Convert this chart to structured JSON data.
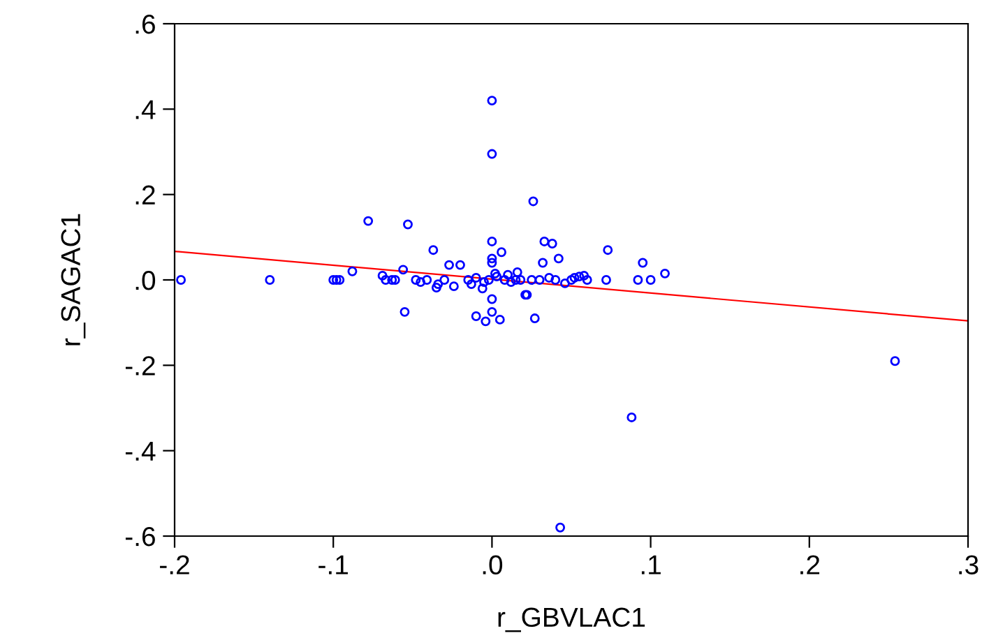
{
  "chart_data": {
    "type": "scatter",
    "xlabel": "r_GBVLAC1",
    "ylabel": "r_SAGAC1",
    "xlim": [
      -0.2,
      0.3
    ],
    "ylim": [
      -0.6,
      0.6
    ],
    "xticks": [
      {
        "value": -0.2,
        "label": "-.2"
      },
      {
        "value": -0.1,
        "label": "-.1"
      },
      {
        "value": 0.0,
        "label": ".0"
      },
      {
        "value": 0.1,
        "label": ".1"
      },
      {
        "value": 0.2,
        "label": ".2"
      },
      {
        "value": 0.3,
        "label": ".3"
      }
    ],
    "yticks": [
      {
        "value": -0.6,
        "label": "-.6"
      },
      {
        "value": -0.4,
        "label": "-.4"
      },
      {
        "value": -0.2,
        "label": "-.2"
      },
      {
        "value": 0.0,
        "label": ".0"
      },
      {
        "value": 0.2,
        "label": ".2"
      },
      {
        "value": 0.4,
        "label": ".4"
      },
      {
        "value": 0.6,
        "label": ".6"
      }
    ],
    "grid": false,
    "series": [
      {
        "marker": "circle",
        "color": "#0000ff",
        "x": [
          -0.196,
          -0.14,
          -0.1,
          -0.098,
          -0.096,
          -0.088,
          -0.078,
          -0.053,
          -0.055,
          -0.056,
          -0.069,
          -0.067,
          -0.063,
          -0.061,
          -0.048,
          -0.041,
          -0.037,
          -0.027,
          -0.02,
          0.0,
          0.0,
          0.026,
          0.0,
          0.033,
          0.038,
          0.006,
          0.0,
          0.0,
          0.032,
          0.042,
          0.073,
          0.095,
          0.109,
          0.016,
          0.0,
          0.021,
          0.022,
          -0.01,
          -0.004,
          0.005,
          0.0,
          0.027,
          -0.024,
          -0.034,
          -0.035,
          0.046,
          0.072,
          0.092,
          0.1,
          0.058,
          0.052,
          0.055,
          0.254,
          0.088,
          0.043,
          -0.03,
          -0.015,
          -0.01,
          -0.005,
          -0.002,
          0.003,
          0.008,
          0.012,
          0.018,
          0.025,
          0.03,
          0.036,
          0.04,
          0.05,
          0.06,
          -0.045,
          -0.013,
          0.002,
          0.01,
          -0.006,
          0.015
        ],
        "values": [
          0.0,
          0.0,
          0.0,
          0.0,
          0.0,
          0.02,
          0.138,
          0.13,
          -0.075,
          0.024,
          0.01,
          0.0,
          0.0,
          0.0,
          0.0,
          0.0,
          0.07,
          0.035,
          0.035,
          0.42,
          0.295,
          0.184,
          0.09,
          0.09,
          0.085,
          0.065,
          0.05,
          0.04,
          0.04,
          0.05,
          0.07,
          0.04,
          0.015,
          0.018,
          -0.045,
          -0.035,
          -0.035,
          -0.085,
          -0.097,
          -0.093,
          -0.075,
          -0.09,
          -0.015,
          -0.01,
          -0.018,
          -0.008,
          0.0,
          0.0,
          0.0,
          0.01,
          0.005,
          0.008,
          -0.19,
          -0.322,
          -0.58,
          0.0,
          0.0,
          0.005,
          -0.005,
          0.0,
          0.008,
          0.0,
          -0.005,
          0.0,
          0.0,
          0.0,
          0.005,
          0.0,
          0.0,
          0.0,
          -0.005,
          -0.01,
          0.015,
          0.012,
          -0.02,
          0.0
        ]
      },
      {
        "type": "line",
        "marker": "none",
        "color": "#ff0000",
        "x": [
          -0.2,
          0.3
        ],
        "values": [
          0.067,
          -0.096
        ]
      }
    ]
  }
}
